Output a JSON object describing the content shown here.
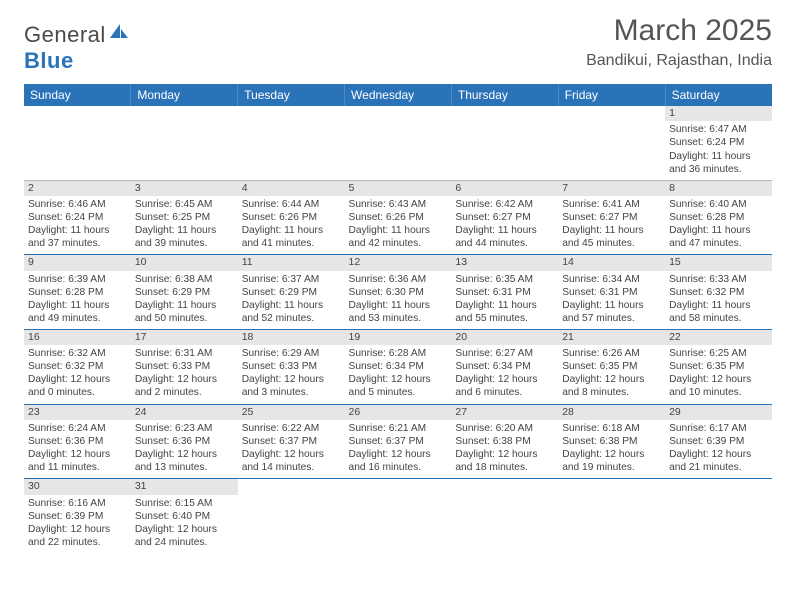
{
  "brand": {
    "part1": "General",
    "part2": "Blue"
  },
  "title": "March 2025",
  "subtitle": "Bandikui, Rajasthan, India",
  "colors": {
    "header_bg": "#2b73b8",
    "header_text": "#ffffff",
    "daynum_bg": "#e6e6e6",
    "rule": "#2b73b8",
    "text": "#444444"
  },
  "weekdays": [
    "Sunday",
    "Monday",
    "Tuesday",
    "Wednesday",
    "Thursday",
    "Friday",
    "Saturday"
  ],
  "weeks": [
    [
      null,
      null,
      null,
      null,
      null,
      null,
      {
        "n": "1",
        "sr": "6:47 AM",
        "ss": "6:24 PM",
        "dl": "11 hours and 36 minutes."
      }
    ],
    [
      {
        "n": "2",
        "sr": "6:46 AM",
        "ss": "6:24 PM",
        "dl": "11 hours and 37 minutes."
      },
      {
        "n": "3",
        "sr": "6:45 AM",
        "ss": "6:25 PM",
        "dl": "11 hours and 39 minutes."
      },
      {
        "n": "4",
        "sr": "6:44 AM",
        "ss": "6:26 PM",
        "dl": "11 hours and 41 minutes."
      },
      {
        "n": "5",
        "sr": "6:43 AM",
        "ss": "6:26 PM",
        "dl": "11 hours and 42 minutes."
      },
      {
        "n": "6",
        "sr": "6:42 AM",
        "ss": "6:27 PM",
        "dl": "11 hours and 44 minutes."
      },
      {
        "n": "7",
        "sr": "6:41 AM",
        "ss": "6:27 PM",
        "dl": "11 hours and 45 minutes."
      },
      {
        "n": "8",
        "sr": "6:40 AM",
        "ss": "6:28 PM",
        "dl": "11 hours and 47 minutes."
      }
    ],
    [
      {
        "n": "9",
        "sr": "6:39 AM",
        "ss": "6:28 PM",
        "dl": "11 hours and 49 minutes."
      },
      {
        "n": "10",
        "sr": "6:38 AM",
        "ss": "6:29 PM",
        "dl": "11 hours and 50 minutes."
      },
      {
        "n": "11",
        "sr": "6:37 AM",
        "ss": "6:29 PM",
        "dl": "11 hours and 52 minutes."
      },
      {
        "n": "12",
        "sr": "6:36 AM",
        "ss": "6:30 PM",
        "dl": "11 hours and 53 minutes."
      },
      {
        "n": "13",
        "sr": "6:35 AM",
        "ss": "6:31 PM",
        "dl": "11 hours and 55 minutes."
      },
      {
        "n": "14",
        "sr": "6:34 AM",
        "ss": "6:31 PM",
        "dl": "11 hours and 57 minutes."
      },
      {
        "n": "15",
        "sr": "6:33 AM",
        "ss": "6:32 PM",
        "dl": "11 hours and 58 minutes."
      }
    ],
    [
      {
        "n": "16",
        "sr": "6:32 AM",
        "ss": "6:32 PM",
        "dl": "12 hours and 0 minutes."
      },
      {
        "n": "17",
        "sr": "6:31 AM",
        "ss": "6:33 PM",
        "dl": "12 hours and 2 minutes."
      },
      {
        "n": "18",
        "sr": "6:29 AM",
        "ss": "6:33 PM",
        "dl": "12 hours and 3 minutes."
      },
      {
        "n": "19",
        "sr": "6:28 AM",
        "ss": "6:34 PM",
        "dl": "12 hours and 5 minutes."
      },
      {
        "n": "20",
        "sr": "6:27 AM",
        "ss": "6:34 PM",
        "dl": "12 hours and 6 minutes."
      },
      {
        "n": "21",
        "sr": "6:26 AM",
        "ss": "6:35 PM",
        "dl": "12 hours and 8 minutes."
      },
      {
        "n": "22",
        "sr": "6:25 AM",
        "ss": "6:35 PM",
        "dl": "12 hours and 10 minutes."
      }
    ],
    [
      {
        "n": "23",
        "sr": "6:24 AM",
        "ss": "6:36 PM",
        "dl": "12 hours and 11 minutes."
      },
      {
        "n": "24",
        "sr": "6:23 AM",
        "ss": "6:36 PM",
        "dl": "12 hours and 13 minutes."
      },
      {
        "n": "25",
        "sr": "6:22 AM",
        "ss": "6:37 PM",
        "dl": "12 hours and 14 minutes."
      },
      {
        "n": "26",
        "sr": "6:21 AM",
        "ss": "6:37 PM",
        "dl": "12 hours and 16 minutes."
      },
      {
        "n": "27",
        "sr": "6:20 AM",
        "ss": "6:38 PM",
        "dl": "12 hours and 18 minutes."
      },
      {
        "n": "28",
        "sr": "6:18 AM",
        "ss": "6:38 PM",
        "dl": "12 hours and 19 minutes."
      },
      {
        "n": "29",
        "sr": "6:17 AM",
        "ss": "6:39 PM",
        "dl": "12 hours and 21 minutes."
      }
    ],
    [
      {
        "n": "30",
        "sr": "6:16 AM",
        "ss": "6:39 PM",
        "dl": "12 hours and 22 minutes."
      },
      {
        "n": "31",
        "sr": "6:15 AM",
        "ss": "6:40 PM",
        "dl": "12 hours and 24 minutes."
      },
      null,
      null,
      null,
      null,
      null
    ]
  ],
  "labels": {
    "sunrise": "Sunrise:",
    "sunset": "Sunset:",
    "daylight": "Daylight:"
  }
}
